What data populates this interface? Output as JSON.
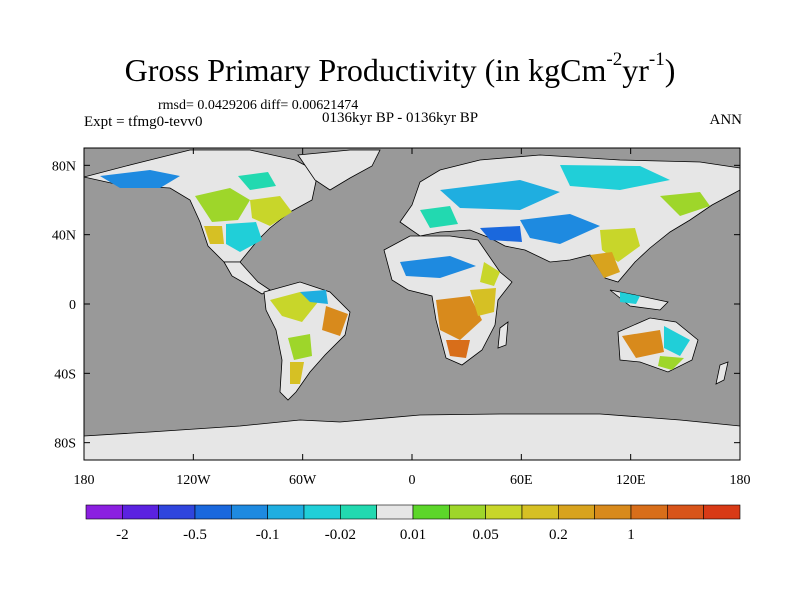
{
  "title": {
    "main": "Gross Primary Productivity (in kgCm",
    "sup1": "-2",
    "mid": "yr",
    "sup2": "-1",
    "end": ")"
  },
  "stats": "rmsd= 0.0429206 diff= 0.00621474",
  "experiment": "Expt = tfmg0-tevv0",
  "period": "0136kyr BP - 0136kyr BP",
  "season": "ANN",
  "colors": {
    "ocean": "#999999",
    "near_zero": "#e6e6e6",
    "coast": "#000000"
  },
  "map_data": {
    "projection": "cylindrical-equidistant",
    "lon_range": [
      -180,
      180
    ],
    "lat_range": [
      -90,
      90
    ],
    "lon_ticks": [
      {
        "value": -180,
        "label": "180"
      },
      {
        "value": -120,
        "label": "120W"
      },
      {
        "value": -60,
        "label": "60W"
      },
      {
        "value": 0,
        "label": "0"
      },
      {
        "value": 60,
        "label": "60E"
      },
      {
        "value": 120,
        "label": "120E"
      },
      {
        "value": 180,
        "label": "180"
      }
    ],
    "lat_ticks": [
      {
        "value": 80,
        "label": "80N"
      },
      {
        "value": 40,
        "label": "40N"
      },
      {
        "value": 0,
        "label": "0"
      },
      {
        "value": -40,
        "label": "40S"
      },
      {
        "value": -80,
        "label": "80S"
      }
    ]
  },
  "colorbar": {
    "colors": [
      "#8b1fe0",
      "#5b22e0",
      "#2f45dd",
      "#1a68dd",
      "#1e8ae0",
      "#1faee0",
      "#20cfd8",
      "#22d9b0",
      "#e6e6e6",
      "#5cd62a",
      "#9ed62a",
      "#c8d62a",
      "#d6c024",
      "#d8a31e",
      "#d88a1c",
      "#d86e1a",
      "#d8541a",
      "#d83a16"
    ],
    "labels": [
      {
        "index": 1,
        "text": "-2"
      },
      {
        "index": 3,
        "text": "-0.5"
      },
      {
        "index": 5,
        "text": "-0.1"
      },
      {
        "index": 7,
        "text": "-0.02"
      },
      {
        "index": 9,
        "text": "0.01"
      },
      {
        "index": 11,
        "text": "0.05"
      },
      {
        "index": 13,
        "text": "0.2"
      },
      {
        "index": 15,
        "text": "1"
      }
    ]
  }
}
